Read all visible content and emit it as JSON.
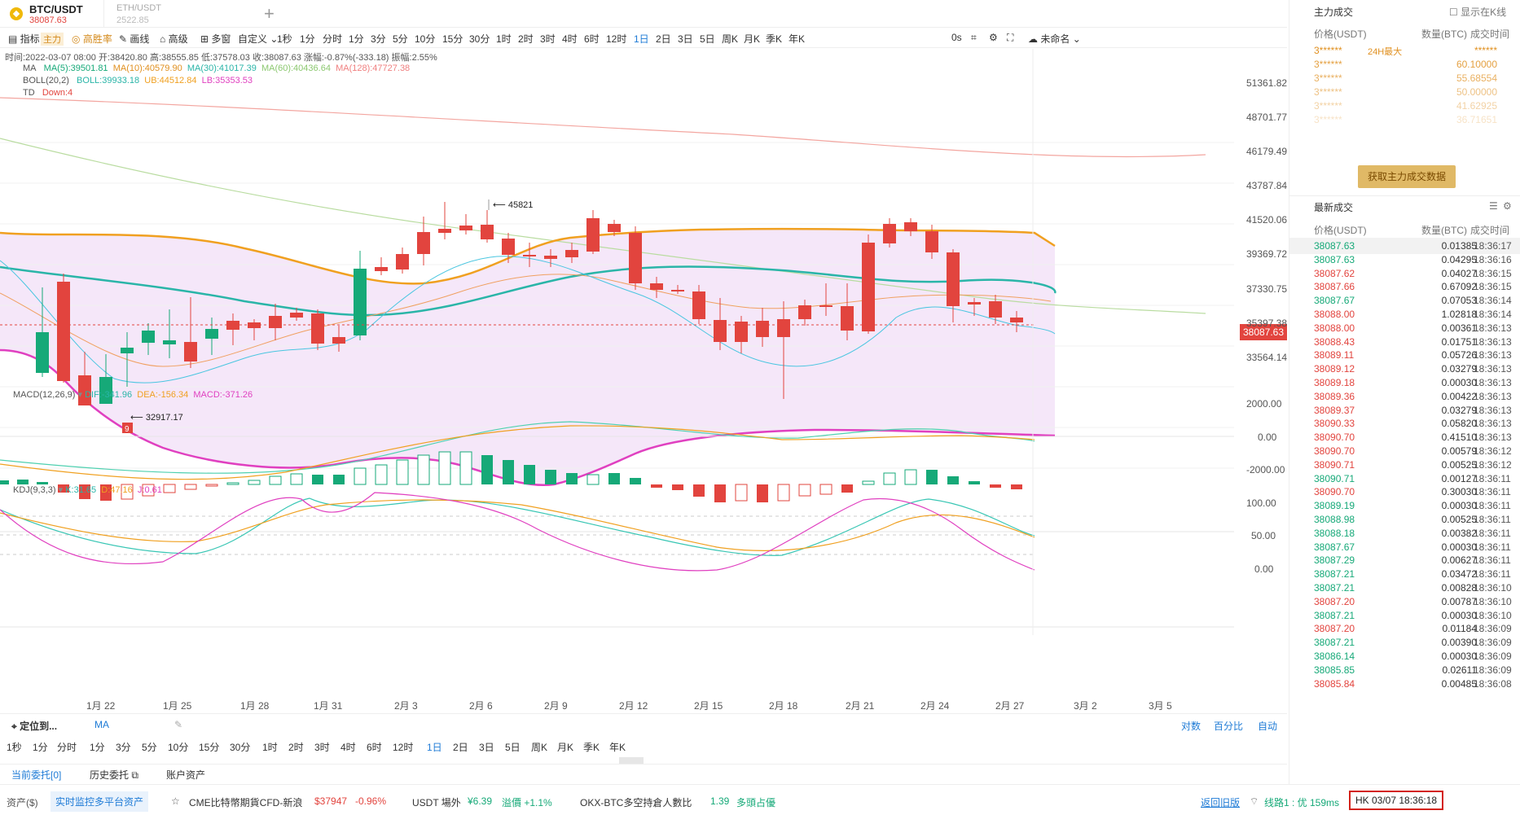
{
  "tabs": [
    {
      "pair": "BTC/USDT",
      "price": "38087.63"
    },
    {
      "pair": "ETH/USDT",
      "price": "2522.85"
    }
  ],
  "toolbar": {
    "indicator": "指标",
    "main_tag": "主力",
    "winrate": "高胜率",
    "draw": "画线",
    "advanced": "高级",
    "multi": "多窗",
    "custom": "自定义",
    "intervals": [
      "1秒",
      "1分",
      "分时",
      "1分",
      "3分",
      "5分",
      "10分",
      "15分",
      "30分",
      "1时",
      "2时",
      "3时",
      "4时",
      "6时",
      "12时",
      "1日",
      "2日",
      "3日",
      "5日",
      "周K",
      "月K",
      "季K",
      "年K"
    ],
    "selected": "1日",
    "countdown": "0s",
    "unnamed": "未命名"
  },
  "legend": {
    "info": "时间:2022-03-07 08:00  开:38420.80  高:38555.85  低:37578.03  收:38087.63  涨幅:-0.87%(-333.18)  振幅:2.55%",
    "ma_name": "MA",
    "ma5": "MA(5):39501.81",
    "ma10": "MA(10):40579.90",
    "ma30": "MA(30):41017.39",
    "ma60": "MA(60):40436.64",
    "ma128": "MA(128):47727.38",
    "boll_name": "BOLL(20,2)",
    "boll": "BOLL:39933.18",
    "ub": "UB:44512.84",
    "lb": "LB:35353.53",
    "td_name": "TD",
    "td": "Down:4",
    "macd_name": "MACD(12,26,9)",
    "dif": "DIF:-341.96",
    "dea": "DEA:-156.34",
    "macd": "MACD:-371.26",
    "kdj_name": "KDJ(9,3,3)",
    "k": "K:31.65",
    "d": "D:47.16",
    "j": "J:0.61"
  },
  "colors": {
    "up": "#16a978",
    "down": "#e2443e",
    "ub": "#f0a020",
    "lb": "#e040c0",
    "boll": "#2ab5a8",
    "accent": "#1e7bd6"
  },
  "price_axis": [
    "51361.82",
    "48701.77",
    "46179.49",
    "43787.84",
    "41520.06",
    "39369.72",
    "38087.63",
    "37330.75",
    "35397.38",
    "33564.14"
  ],
  "macd_axis": [
    "2000.00",
    "0.00",
    "-2000.00"
  ],
  "kdj_axis": [
    "100.00",
    "50.00",
    "0.00"
  ],
  "x_axis": [
    "1月 22",
    "1月 25",
    "1月 28",
    "1月 31",
    "2月 3",
    "2月 6",
    "2月 9",
    "2月 12",
    "2月 15",
    "2月 18",
    "2月 21",
    "2月 24",
    "2月 27",
    "3月 2",
    "3月 5"
  ],
  "annotations": {
    "high": "45821",
    "low": "32917.17",
    "low_count": "9"
  },
  "nav": {
    "locate": "定位到...",
    "ma": "MA",
    "log": "对数",
    "percent": "百分比",
    "auto": "自动"
  },
  "nav_intervals": [
    "1秒",
    "1分",
    "分时",
    "1分",
    "3分",
    "5分",
    "10分",
    "15分",
    "30分",
    "1时",
    "2时",
    "3时",
    "4时",
    "6时",
    "12时",
    "1日",
    "2日",
    "3日",
    "5日",
    "周K",
    "月K",
    "季K",
    "年K"
  ],
  "orders": {
    "current": "当前委托[0]",
    "history": "历史委托",
    "assets": "账户资产"
  },
  "main_trades": {
    "title": "主力成交",
    "show_k": "显示在K线",
    "col_price": "价格(USDT)",
    "col_qty": "数量(BTC)",
    "col_time": "成交时间",
    "rows": [
      [
        "3******",
        "24H最大",
        "******"
      ],
      [
        "3******",
        "",
        "60.10000"
      ],
      [
        "3******",
        "",
        "55.68554"
      ],
      [
        "3******",
        "",
        "50.00000"
      ],
      [
        "3******",
        "",
        "41.62925"
      ],
      [
        "3******",
        "",
        "36.71651"
      ]
    ],
    "button": "获取主力成交数据"
  },
  "latest_trades": {
    "title": "最新成交",
    "col_price": "价格(USDT)",
    "col_qty": "数量(BTC)",
    "col_time": "成交时间",
    "rows": [
      [
        "38087.63",
        "0.01385",
        "18:36:17",
        "g"
      ],
      [
        "38087.63",
        "0.04295",
        "18:36:16",
        "g"
      ],
      [
        "38087.62",
        "0.04027",
        "18:36:15",
        "r"
      ],
      [
        "38087.66",
        "0.67092",
        "18:36:15",
        "r"
      ],
      [
        "38087.67",
        "0.07053",
        "18:36:14",
        "g"
      ],
      [
        "38088.00",
        "1.02818",
        "18:36:14",
        "r"
      ],
      [
        "38088.00",
        "0.00361",
        "18:36:13",
        "r"
      ],
      [
        "38088.43",
        "0.01751",
        "18:36:13",
        "r"
      ],
      [
        "38089.11",
        "0.05726",
        "18:36:13",
        "r"
      ],
      [
        "38089.12",
        "0.03279",
        "18:36:13",
        "r"
      ],
      [
        "38089.18",
        "0.00030",
        "18:36:13",
        "r"
      ],
      [
        "38089.36",
        "0.00422",
        "18:36:13",
        "r"
      ],
      [
        "38089.37",
        "0.03279",
        "18:36:13",
        "r"
      ],
      [
        "38090.33",
        "0.05820",
        "18:36:13",
        "r"
      ],
      [
        "38090.70",
        "0.41510",
        "18:36:13",
        "r"
      ],
      [
        "38090.70",
        "0.00579",
        "18:36:12",
        "r"
      ],
      [
        "38090.71",
        "0.00525",
        "18:36:12",
        "r"
      ],
      [
        "38090.71",
        "0.00127",
        "18:36:11",
        "g"
      ],
      [
        "38090.70",
        "0.30030",
        "18:36:11",
        "r"
      ],
      [
        "38089.19",
        "0.00030",
        "18:36:11",
        "g"
      ],
      [
        "38088.98",
        "0.00525",
        "18:36:11",
        "g"
      ],
      [
        "38088.18",
        "0.00382",
        "18:36:11",
        "g"
      ],
      [
        "38087.67",
        "0.00030",
        "18:36:11",
        "g"
      ],
      [
        "38087.29",
        "0.00627",
        "18:36:11",
        "g"
      ],
      [
        "38087.21",
        "0.03472",
        "18:36:11",
        "g"
      ],
      [
        "38087.21",
        "0.00828",
        "18:36:10",
        "g"
      ],
      [
        "38087.20",
        "0.00787",
        "18:36:10",
        "r"
      ],
      [
        "38087.21",
        "0.00030",
        "18:36:10",
        "g"
      ],
      [
        "38087.20",
        "0.01184",
        "18:36:09",
        "r"
      ],
      [
        "38087.21",
        "0.00390",
        "18:36:09",
        "g"
      ],
      [
        "38086.14",
        "0.00030",
        "18:36:09",
        "g"
      ],
      [
        "38085.85",
        "0.02611",
        "18:36:09",
        "g"
      ],
      [
        "38085.84",
        "0.00485",
        "18:36:08",
        "r"
      ]
    ]
  },
  "bottom": {
    "assets": "资产($)",
    "monitor": "实时监控多平台资产",
    "cme": "CME比特幣期貨CFD-新浪",
    "cme_price": "$37947",
    "cme_chg": "-0.96%",
    "usdt": "USDT 場外",
    "usdt_price": "¥6.39",
    "premium": "溢價 +1.1%",
    "okx": "OKX-BTC多空持倉人數比",
    "okx_val": "1.39",
    "okx_note": "多頭占優",
    "back": "返回旧版",
    "line": "线路1 : 优 159ms",
    "clock": "HK  03/07 18:36:18"
  }
}
